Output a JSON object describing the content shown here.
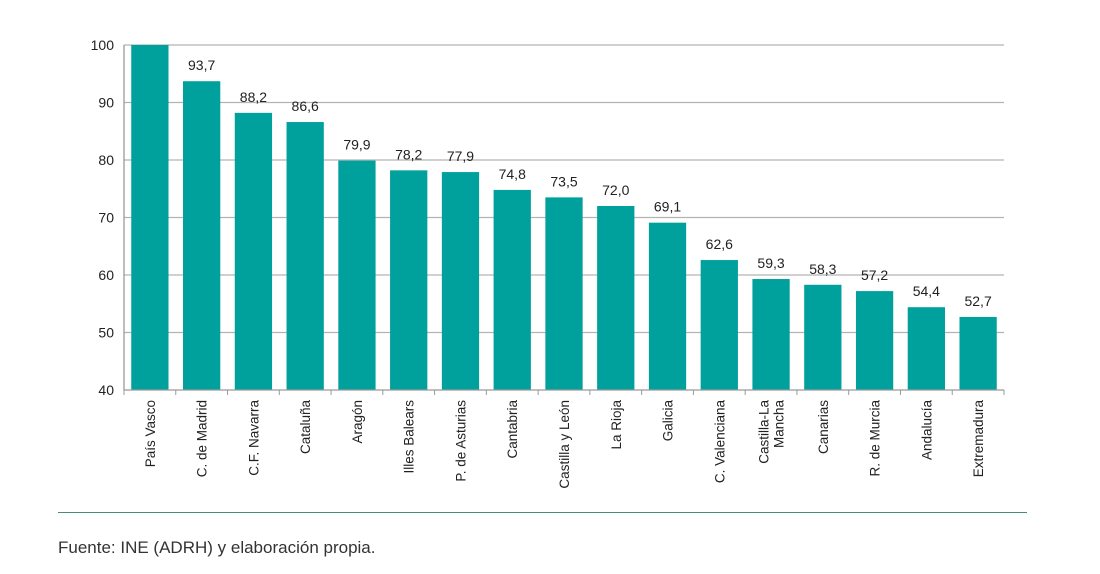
{
  "chart_data": {
    "type": "bar",
    "categories": [
      "País Vasco",
      "C. de Madrid",
      "C.F. Navarra",
      "Cataluña",
      "Aragón",
      "Illes Balears",
      "P. de Asturias",
      "Cantabria",
      "Castilla y León",
      "La Rioja",
      "Galicia",
      "C. Valenciana",
      "Castilla-La Mancha",
      "Canarias",
      "R. de Murcia",
      "Andalucía",
      "Extremadura"
    ],
    "category_lines": [
      [
        "País Vasco"
      ],
      [
        "C. de Madrid"
      ],
      [
        "C.F. Navarra"
      ],
      [
        "Cataluña"
      ],
      [
        "Aragón"
      ],
      [
        "Illes Balears"
      ],
      [
        "P. de Asturias"
      ],
      [
        "Cantabria"
      ],
      [
        "Castilla y León"
      ],
      [
        "La Rioja"
      ],
      [
        "Galicia"
      ],
      [
        "C. Valenciana"
      ],
      [
        "Castilla-La",
        "Mancha"
      ],
      [
        "Canarias"
      ],
      [
        "R. de Murcia"
      ],
      [
        "Andalucía"
      ],
      [
        "Extremadura"
      ]
    ],
    "values": [
      100,
      93.7,
      88.2,
      86.6,
      79.9,
      78.2,
      77.9,
      74.8,
      73.5,
      72.0,
      69.1,
      62.6,
      59.3,
      58.3,
      57.2,
      54.4,
      52.7
    ],
    "data_labels": [
      "",
      "93,7",
      "88,2",
      "86,6",
      "79,9",
      "78,2",
      "77,9",
      "74,8",
      "73,5",
      "72,0",
      "69,1",
      "62,6",
      "59,3",
      "58,3",
      "57,2",
      "54,4",
      "52,7"
    ],
    "ylim": [
      40,
      100
    ],
    "yticks": [
      40,
      50,
      60,
      70,
      80,
      90,
      100
    ],
    "ytick_labels": [
      "40",
      "50",
      "60",
      "70",
      "80",
      "90",
      "100"
    ],
    "grid": true,
    "bar_color": "#00a09d",
    "grid_color": "#b3b3b3",
    "title": "",
    "xlabel": "",
    "ylabel": ""
  },
  "footer": {
    "source": "Fuente: INE (ADRH) y elaboración propia."
  },
  "colors": {
    "rule": "#4a8a78"
  }
}
